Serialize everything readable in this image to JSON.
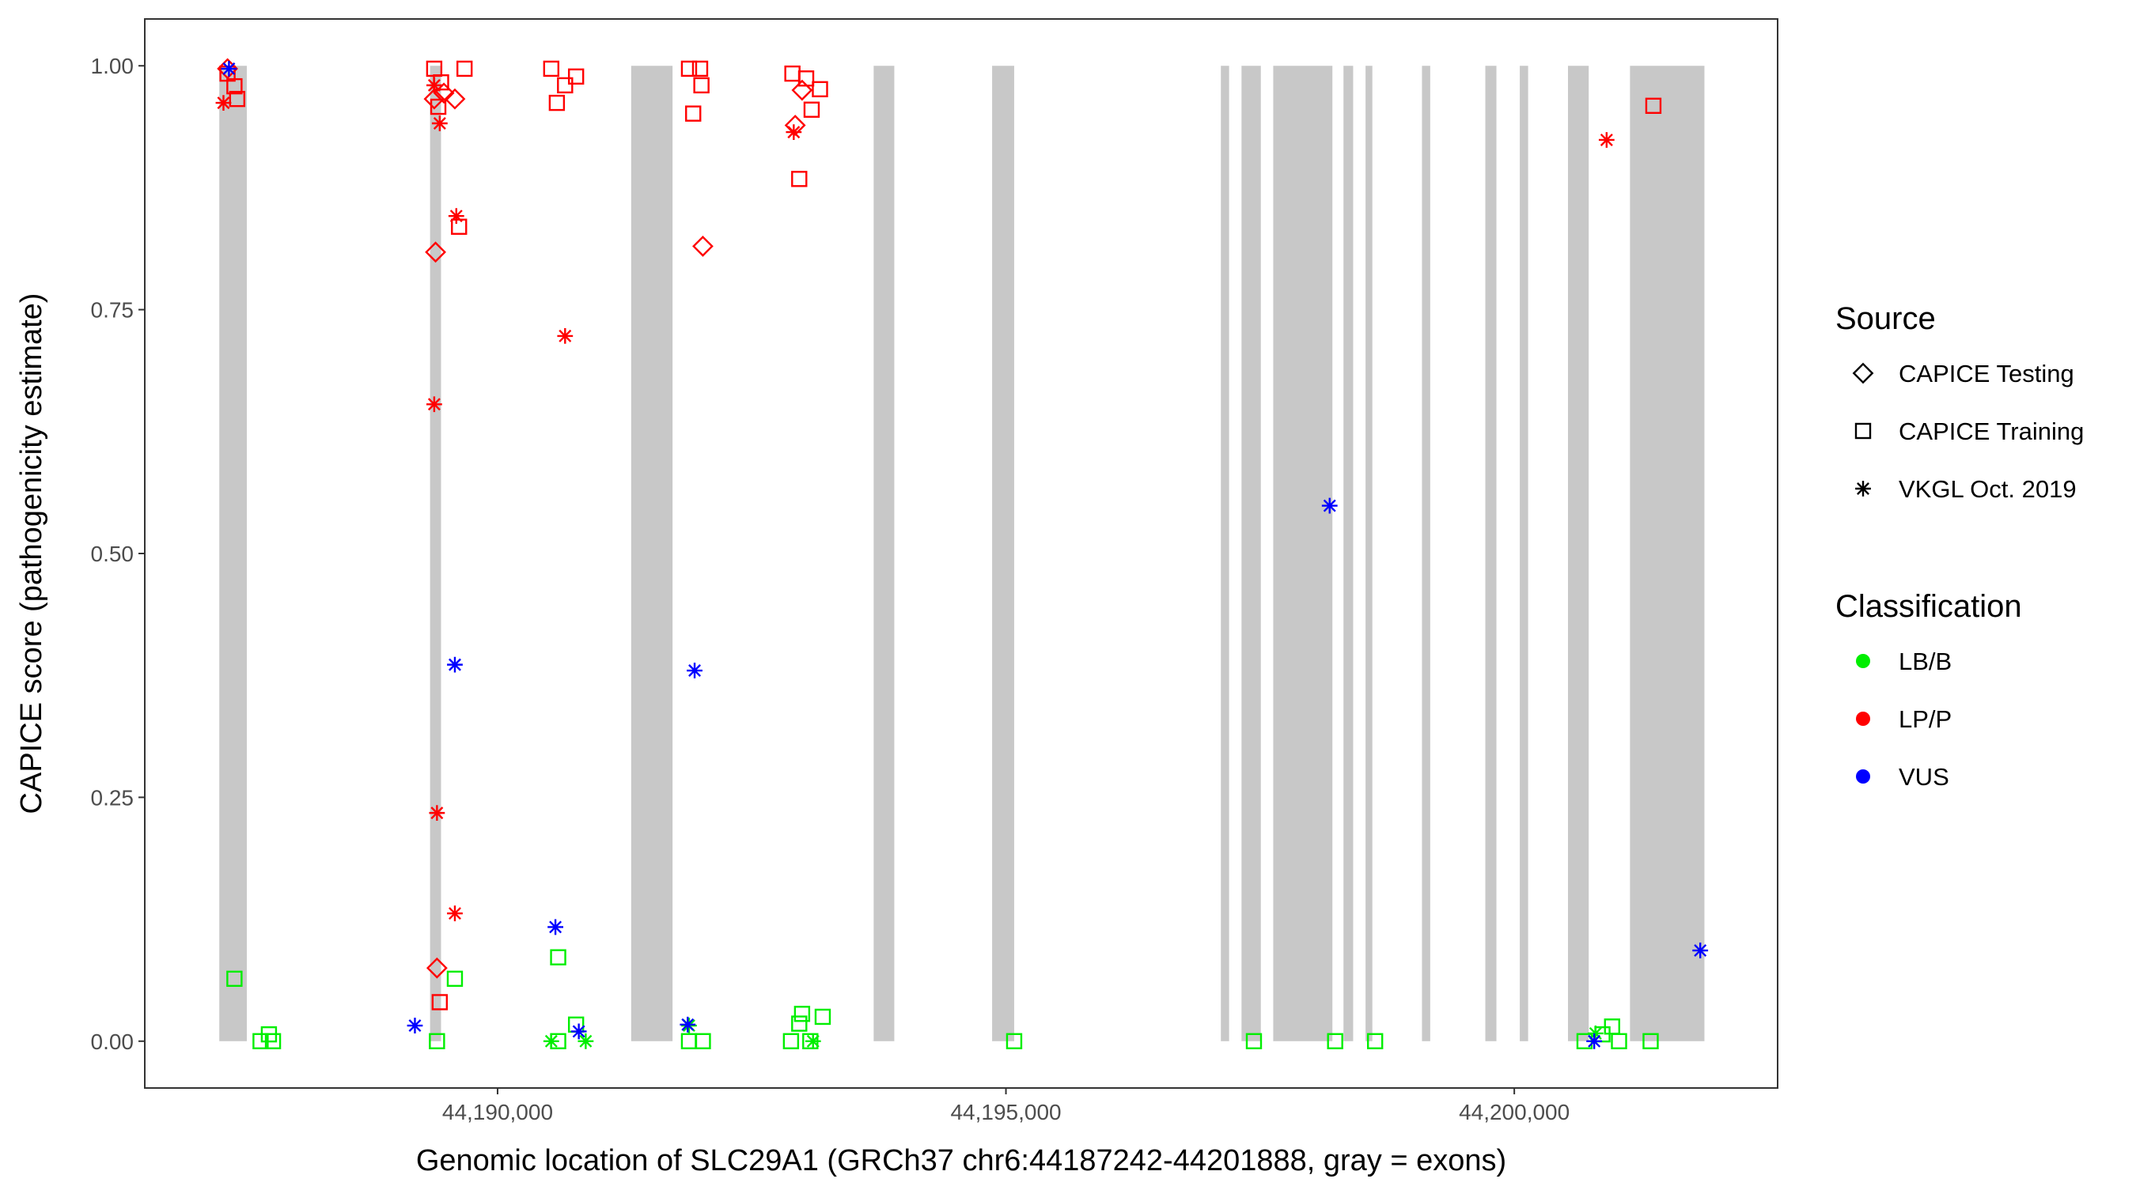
{
  "chart_data": {
    "type": "scatter",
    "x_label": "Genomic location of SLC29A1 (GRCh37 chr6:44187242-44201888, gray = exons)",
    "y_label": "CAPICE score (pathogenicity estimate)",
    "xlim": [
      44186530,
      44202590
    ],
    "ylim": [
      -0.048,
      1.048
    ],
    "xticks": [
      {
        "value": 44190000,
        "label": "44,190,000"
      },
      {
        "value": 44195000,
        "label": "44,195,000"
      },
      {
        "value": 44200000,
        "label": "44,200,000"
      }
    ],
    "yticks": [
      {
        "value": 0,
        "label": "0.00"
      },
      {
        "value": 0.25,
        "label": "0.25"
      },
      {
        "value": 0.5,
        "label": "0.50"
      },
      {
        "value": 0.75,
        "label": "0.75"
      },
      {
        "value": 1,
        "label": "1.00"
      }
    ],
    "grid": false,
    "exon_color": "#c8c8c8",
    "exons": [
      [
        44187263,
        44187534
      ],
      [
        44189336,
        44189444
      ],
      [
        44191314,
        44191721
      ],
      [
        44193699,
        44193902
      ],
      [
        44194864,
        44195081
      ],
      [
        44197114,
        44197195
      ],
      [
        44197317,
        44197507
      ],
      [
        44197629,
        44198211
      ],
      [
        44198320,
        44198415
      ],
      [
        44198537,
        44198604
      ],
      [
        44199092,
        44199173
      ],
      [
        44199715,
        44199824
      ],
      [
        44200054,
        44200136
      ],
      [
        44200528,
        44200732
      ],
      [
        44201138,
        44201870
      ]
    ],
    "sources": {
      "title": "Source",
      "items": [
        {
          "name": "CAPICE Testing",
          "shape": "diamond"
        },
        {
          "name": "CAPICE Training",
          "shape": "square"
        },
        {
          "name": "VKGL Oct. 2019",
          "shape": "asterisk"
        }
      ]
    },
    "classifications": {
      "title": "Classification",
      "items": [
        {
          "name": "LB/B",
          "color": "#00ee00"
        },
        {
          "name": "LP/P",
          "color": "#ff0000"
        },
        {
          "name": "VUS",
          "color": "#0000ff"
        }
      ]
    },
    "series": [
      {
        "source": 0,
        "classification": 1,
        "x": [
          44187344,
          44189377,
          44189472,
          44189580,
          44189390,
          44189404,
          44192019,
          44192927,
          44192995
        ],
        "y": [
          0.997,
          0.966,
          0.972,
          0.966,
          0.809,
          0.075,
          0.815,
          0.939,
          0.975
        ]
      },
      {
        "source": 1,
        "classification": 1,
        "x": [
          44187344,
          44187412,
          44187439,
          44189377,
          44189444,
          44189417,
          44189621,
          44189675,
          44189431,
          44190528,
          44190583,
          44190664,
          44190772,
          44191883,
          44191992,
          44191924,
          44192005,
          44192967,
          44192900,
          44193035,
          44193089,
          44193171,
          44201368
        ],
        "y": [
          0.992,
          0.979,
          0.966,
          0.997,
          0.983,
          0.958,
          0.835,
          0.997,
          0.04,
          0.997,
          0.962,
          0.98,
          0.989,
          0.997,
          0.997,
          0.951,
          0.98,
          0.884,
          0.992,
          0.987,
          0.955,
          0.976,
          0.959
        ]
      },
      {
        "source": 2,
        "classification": 1,
        "x": [
          44187304,
          44189377,
          44189431,
          44189594,
          44189377,
          44190664,
          44189404,
          44189580,
          44192913,
          44200908
        ],
        "y": [
          0.962,
          0.98,
          0.941,
          0.846,
          0.653,
          0.723,
          0.234,
          0.131,
          0.932,
          0.924
        ]
      },
      {
        "source": 1,
        "classification": 0,
        "x": [
          44187412,
          44187669,
          44187751,
          44187791,
          44189404,
          44189580,
          44190596,
          44190596,
          44190772,
          44191883,
          44192019,
          44192886,
          44192995,
          44192967,
          44193076,
          44193198,
          44195081,
          44197439,
          44198238,
          44198631,
          44200691,
          44200867,
          44200962,
          44201030,
          44201341
        ],
        "y": [
          0.064,
          0,
          0.007,
          0,
          0,
          0.064,
          0.086,
          0,
          0.017,
          0,
          0,
          0,
          0.028,
          0.018,
          0,
          0.025,
          0,
          0,
          0,
          0,
          0,
          0.007,
          0.015,
          0,
          0
        ]
      },
      {
        "source": 2,
        "classification": 0,
        "x": [
          44190528,
          44190867,
          44191883,
          44193103,
          44200799
        ],
        "y": [
          0,
          0,
          0.016,
          0,
          0.008
        ]
      },
      {
        "source": 2,
        "classification": 2,
        "x": [
          44187358,
          44189187,
          44189580,
          44190569,
          44190799,
          44191870,
          44191938,
          44198184,
          44200786,
          44201829
        ],
        "y": [
          0.997,
          0.016,
          0.386,
          0.117,
          0.01,
          0.017,
          0.38,
          0.549,
          0,
          0.093
        ]
      }
    ]
  }
}
